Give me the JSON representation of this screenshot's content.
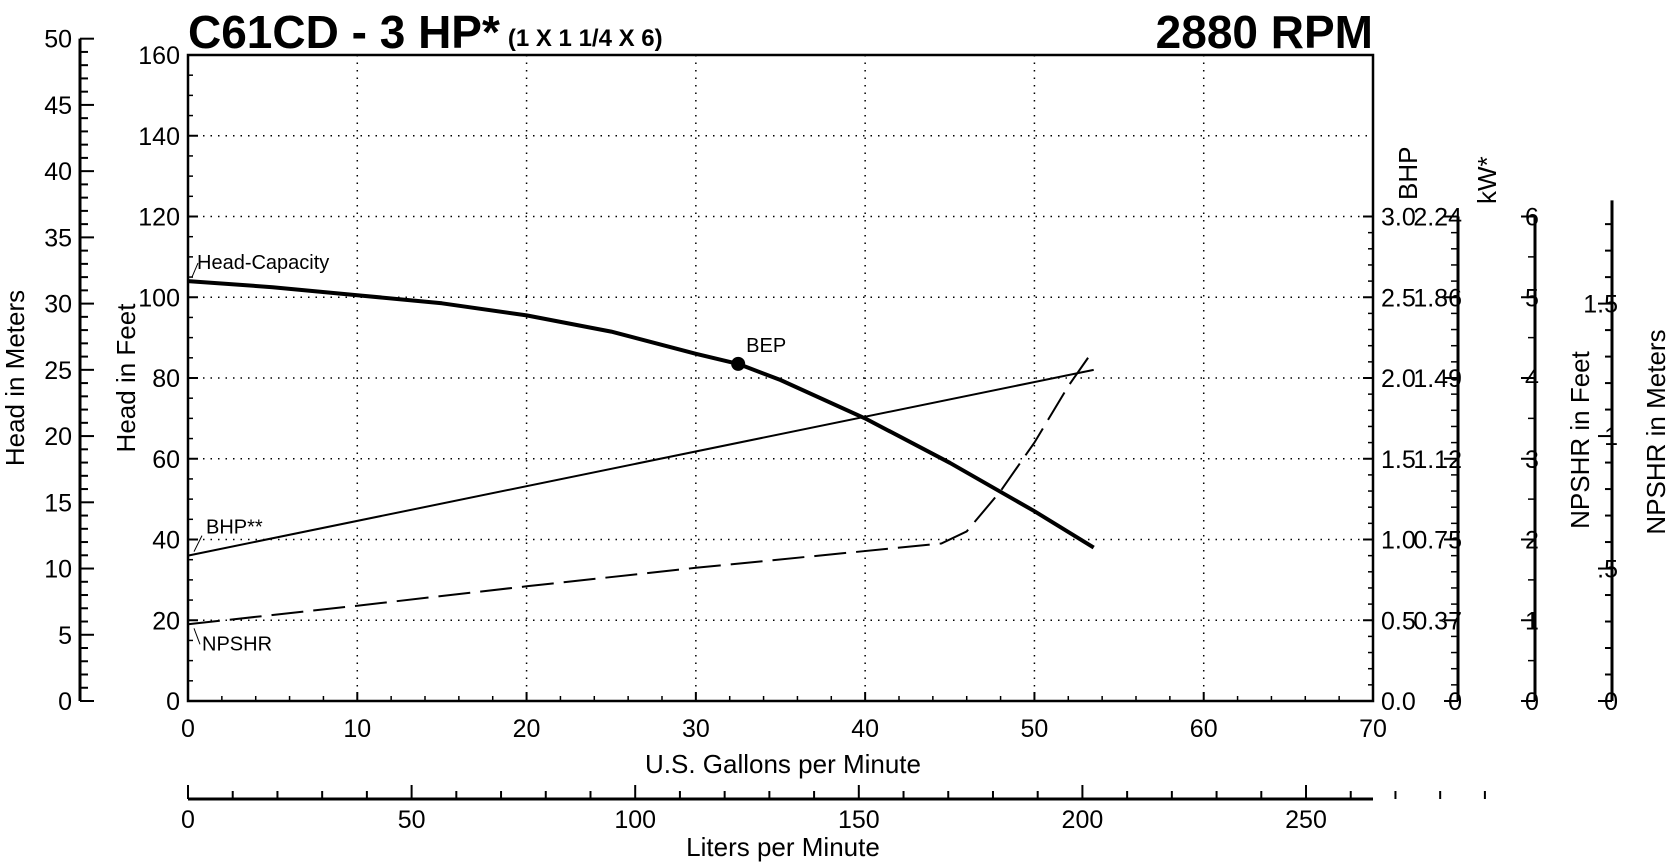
{
  "chart_data": {
    "type": "line",
    "title": "C61CD - 3 HP*",
    "subtitle": "(1 X 1 1/4 X 6)",
    "title_right": "2880 RPM",
    "xlabel": "U.S. Gallons per Minute",
    "x2label": "Liters per Minute",
    "ylabel_feet": "Head in Feet",
    "ylabel_meters": "Head in Meters",
    "bhp_label": "BHP",
    "kw_label": "kW*",
    "npshr_feet_label": "NPSHR in Feet",
    "npshr_meters_label": "NPSHR in Meters",
    "xlim": [
      0,
      70
    ],
    "ylim": [
      0,
      160
    ],
    "grid": true,
    "x_ticks": [
      "0",
      "10",
      "20",
      "30",
      "40",
      "50",
      "60",
      "70"
    ],
    "x2_ticks": [
      "0",
      "50",
      "100",
      "150",
      "200",
      "250"
    ],
    "y_feet_ticks": [
      "0",
      "20",
      "40",
      "60",
      "80",
      "100",
      "120",
      "140",
      "160"
    ],
    "y_meters_ticks": [
      "0",
      "5",
      "10",
      "15",
      "20",
      "25",
      "30",
      "35",
      "40",
      "45",
      "50"
    ],
    "bhp_ticks": [
      "0.0",
      "0.5",
      "1.0",
      "1.5",
      "2.0",
      "2.5",
      "3.0"
    ],
    "kw_ticks": [
      "0",
      "0.37",
      "0.75",
      "1.12",
      "1.49",
      "1.86",
      "2.24"
    ],
    "npshr_feet_ticks": [
      "0",
      "1",
      "2",
      "3",
      "4",
      "5",
      "6"
    ],
    "npshr_meters_ticks": [
      "0",
      ".5",
      "1",
      "1.5"
    ],
    "series": [
      {
        "name": "Head-Capacity",
        "axis": "Head in Feet",
        "x": [
          0,
          5,
          10,
          15,
          20,
          25,
          30,
          32.5,
          35,
          40,
          45,
          50,
          53.5
        ],
        "y": [
          104,
          102.5,
          100.5,
          98.5,
          95.5,
          91.5,
          86,
          83.5,
          79.5,
          70,
          59,
          47,
          38
        ]
      },
      {
        "name": "BHP**",
        "axis": "BHP",
        "x": [
          0,
          53.5
        ],
        "y": [
          0.9,
          2.05
        ]
      },
      {
        "name": "NPSHR",
        "axis": "NPSHR in Feet",
        "x": [
          0,
          10,
          20,
          30,
          44.5,
          46,
          48,
          50,
          52,
          53.5
        ],
        "y": [
          0.95,
          1.18,
          1.42,
          1.65,
          1.95,
          2.1,
          2.6,
          3.2,
          3.9,
          4.35
        ]
      }
    ],
    "annotations": [
      {
        "text": "BEP",
        "x": 32.5,
        "y": 83.5
      }
    ]
  }
}
